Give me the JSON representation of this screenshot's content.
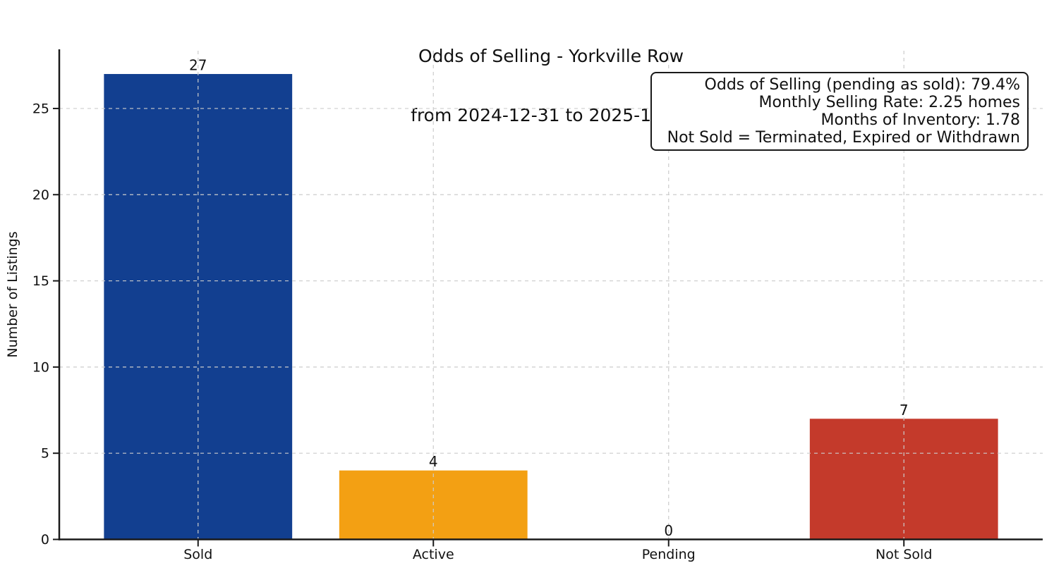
{
  "chart_data": {
    "type": "bar",
    "title": "Odds of Selling - Yorkville Row",
    "subtitle": "from 2024-12-31 to 2025-12-31",
    "categories": [
      "Sold",
      "Active",
      "Pending",
      "Not Sold"
    ],
    "values": [
      27,
      4,
      0,
      7
    ],
    "value_labels": [
      "27",
      "4",
      "0",
      "7"
    ],
    "bar_colors": [
      "#123f90",
      "#f3a013",
      null,
      "#c43a2b"
    ],
    "xlabel": "",
    "ylabel": "Number of Listings",
    "ylim": [
      0,
      28.35
    ],
    "yticks": [
      0,
      5,
      10,
      15,
      20,
      25
    ],
    "bar_width_fraction": 0.8,
    "grid": {
      "style": "dashed",
      "axes": "both",
      "color": "#cccccc",
      "drawn_above_bars": true
    },
    "legend_position": "none"
  },
  "annotation_box": {
    "lines": [
      "Odds of Selling (pending as sold): 79.4%",
      "Monthly Selling Rate: 2.25 homes",
      "Months of Inventory: 1.78",
      "Not Sold = Terminated, Expired or Withdrawn"
    ]
  },
  "colors": {
    "spine": "#1a1a1a",
    "text": "#111111",
    "background": "#ffffff"
  }
}
